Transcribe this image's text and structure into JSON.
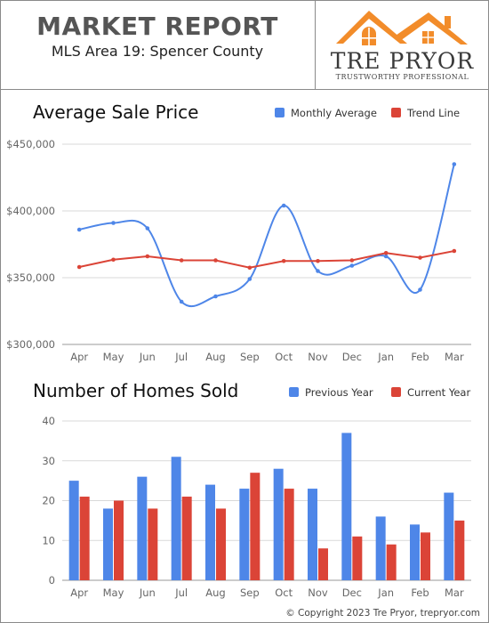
{
  "header": {
    "title": "MARKET REPORT",
    "subtitle": "MLS Area 19: Spencer County"
  },
  "logo": {
    "name": "TRE PRYOR",
    "tagline": "TRUSTWORTHY PROFESSIONAL",
    "colors": {
      "roof": "#f28c2a",
      "text": "#3a3a3a"
    }
  },
  "footer": {
    "copyright": "© Copyright 2023 Tre Pryor, trepryor.com"
  },
  "chart_data": [
    {
      "type": "line",
      "title": "Average Sale Price",
      "categories": [
        "Apr",
        "May",
        "Jun",
        "Jul",
        "Aug",
        "Sep",
        "Oct",
        "Nov",
        "Dec",
        "Jan",
        "Feb",
        "Mar"
      ],
      "series": [
        {
          "name": "Monthly Average",
          "color": "#4e86e8",
          "smooth": true,
          "values": [
            386000,
            391000,
            387000,
            332000,
            336000,
            349000,
            404000,
            355000,
            359000,
            366000,
            341000,
            435000
          ]
        },
        {
          "name": "Trend Line",
          "color": "#db4437",
          "smooth": false,
          "values": [
            358000,
            363500,
            366000,
            363000,
            363000,
            357500,
            362500,
            362500,
            363000,
            368500,
            365000,
            370000
          ]
        }
      ],
      "yticks": [
        "$300,000",
        "$350,000",
        "$400,000",
        "$450,000"
      ],
      "ylim": [
        300000,
        450000
      ],
      "grid": true,
      "legend": "top-right"
    },
    {
      "type": "bar",
      "title": "Number of Homes Sold",
      "categories": [
        "Apr",
        "May",
        "Jun",
        "Jul",
        "Aug",
        "Sep",
        "Oct",
        "Nov",
        "Dec",
        "Jan",
        "Feb",
        "Mar"
      ],
      "series": [
        {
          "name": "Previous Year",
          "color": "#4e86e8",
          "values": [
            25,
            18,
            26,
            31,
            24,
            23,
            28,
            23,
            37,
            16,
            14,
            22
          ]
        },
        {
          "name": "Current Year",
          "color": "#db4437",
          "values": [
            21,
            20,
            18,
            21,
            18,
            27,
            23,
            8,
            11,
            9,
            12,
            15
          ]
        }
      ],
      "yticks": [
        "0",
        "10",
        "20",
        "30",
        "40"
      ],
      "ylim": [
        0,
        40
      ],
      "grid": true,
      "legend": "top-right"
    }
  ]
}
